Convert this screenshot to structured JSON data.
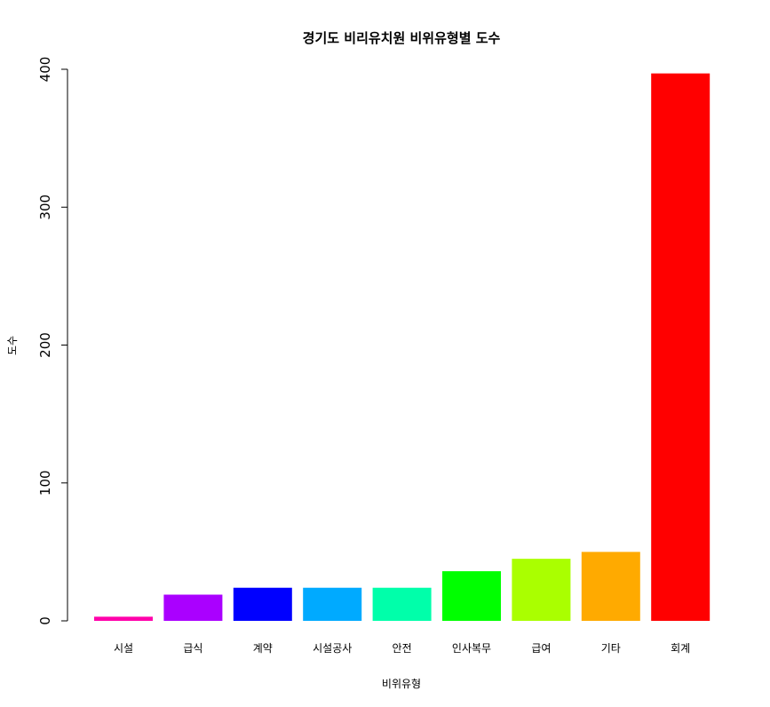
{
  "chart_data": {
    "type": "bar",
    "title": "경기도 비리유치원 비위유형별 도수",
    "xlabel": "비위유형",
    "ylabel": "도수",
    "categories": [
      "시설",
      "급식",
      "계약",
      "시설공사",
      "안전",
      "인사복무",
      "급여",
      "기타",
      "회계"
    ],
    "values": [
      3,
      19,
      24,
      24,
      24,
      36,
      45,
      50,
      397
    ],
    "colors": [
      "#ff00aa",
      "#aa00ff",
      "#0000ff",
      "#00aaff",
      "#00ffaa",
      "#00ff00",
      "#aaff00",
      "#ffaa00",
      "#ff0000"
    ],
    "ylim": [
      0,
      400
    ],
    "yticks": [
      0,
      100,
      200,
      300,
      400
    ],
    "grid": false,
    "legend": "none"
  }
}
